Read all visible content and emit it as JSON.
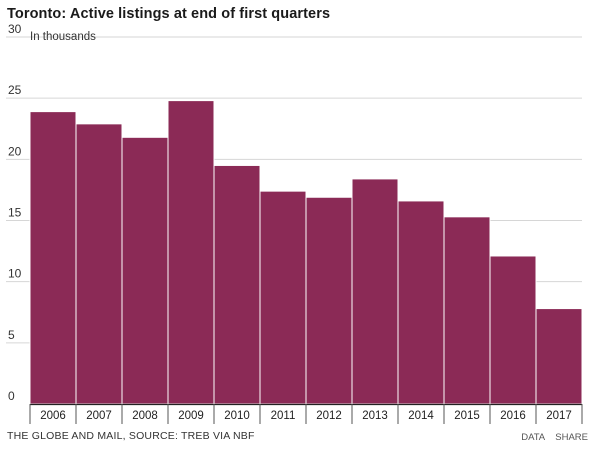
{
  "chart_data": {
    "type": "bar",
    "title": "Toronto: Active listings at end of first quarters",
    "ylabel": "In thousands",
    "xlabel": "",
    "categories": [
      "2006",
      "2007",
      "2008",
      "2009",
      "2010",
      "2011",
      "2012",
      "2013",
      "2014",
      "2015",
      "2016",
      "2017"
    ],
    "values": [
      23.9,
      22.9,
      21.8,
      24.8,
      19.5,
      17.4,
      16.9,
      18.4,
      16.6,
      15.3,
      12.1,
      7.8
    ],
    "ylim": [
      0,
      30
    ],
    "yticks": [
      0,
      5,
      10,
      15,
      20,
      25,
      30
    ],
    "grid": true,
    "bar_color": "#8b2a56"
  },
  "footer": {
    "source": "THE GLOBE AND MAIL, SOURCE: TREB VIA NBF",
    "data_link": "DATA",
    "share_link": "SHARE"
  }
}
